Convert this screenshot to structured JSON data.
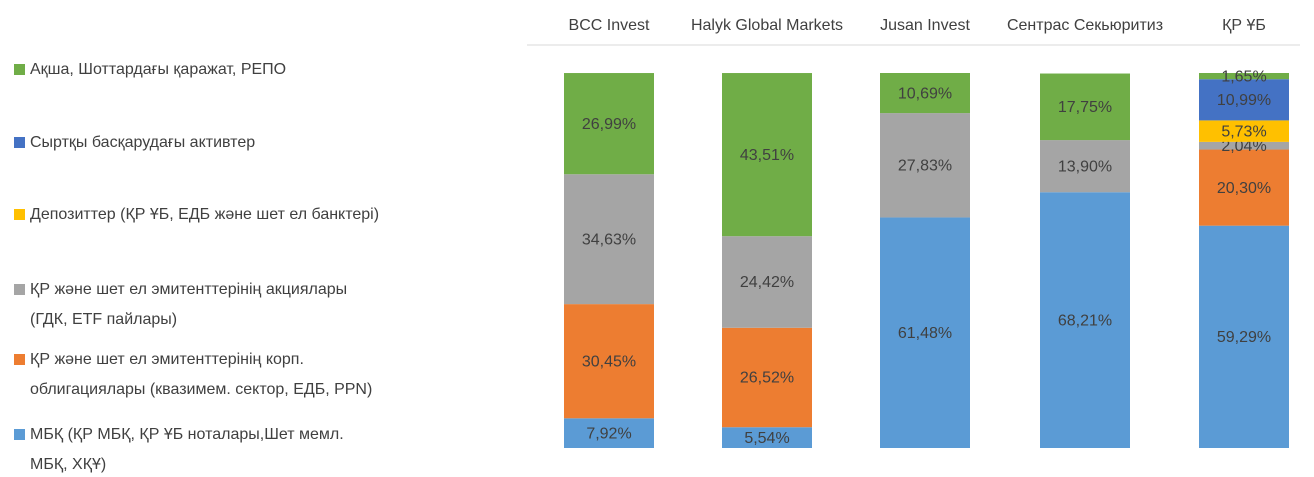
{
  "chart_data": {
    "type": "stacked_bar_100",
    "categories": [
      "BCC Invest",
      "Halyk Global Markets",
      "Jusan Invest",
      "Сентрас Секьюритиз",
      "ҚР ҰБ"
    ],
    "legend": "left",
    "ylim": [
      0,
      100
    ],
    "series": [
      {
        "name": "МБҚ (ҚР МБҚ, ҚР ҰБ ноталары,Шет мемл.\nМБҚ, ХҚҰ)",
        "color": "#5b9bd5",
        "values": [
          7.92,
          5.54,
          61.48,
          68.21,
          59.29
        ],
        "value_labels": [
          "7,92%",
          "5,54%",
          "61,48%",
          "68,21%",
          "59,29%"
        ]
      },
      {
        "name": "ҚР және шет ел эмитенттерінің корп.\nоблигациялары (квазимем. сектор, ЕДБ, PPN)",
        "color": "#ed7d31",
        "values": [
          30.45,
          26.52,
          null,
          null,
          20.3
        ],
        "value_labels": [
          "30,45%",
          "26,52%",
          null,
          null,
          "20,30%"
        ]
      },
      {
        "name": "ҚР және шет ел эмитенттерінің акциялары\n(ГДК, ETF пайлары)",
        "color": "#a5a5a5",
        "values": [
          34.63,
          24.42,
          27.83,
          13.9,
          2.04
        ],
        "value_labels": [
          "34,63%",
          "24,42%",
          "27,83%",
          "13,90%",
          "2,04%"
        ]
      },
      {
        "name": "Депозиттер (ҚР ҰБ, ЕДБ және шет ел банктері)",
        "color": "#ffc000",
        "values": [
          null,
          null,
          null,
          null,
          5.73
        ],
        "value_labels": [
          null,
          null,
          null,
          null,
          "5,73%"
        ]
      },
      {
        "name": "Сыртқы басқарудағы активтер",
        "color": "#4472c4",
        "values": [
          null,
          null,
          null,
          null,
          10.99
        ],
        "value_labels": [
          null,
          null,
          null,
          null,
          "10,99%"
        ]
      },
      {
        "name": "Ақша, Шоттардағы қаражат, РЕПО",
        "color": "#70ad47",
        "values": [
          26.99,
          43.51,
          10.69,
          17.75,
          1.65
        ],
        "value_labels": [
          "26,99%",
          "43,51%",
          "10,69%",
          "17,75%",
          "1,65%"
        ]
      }
    ]
  }
}
